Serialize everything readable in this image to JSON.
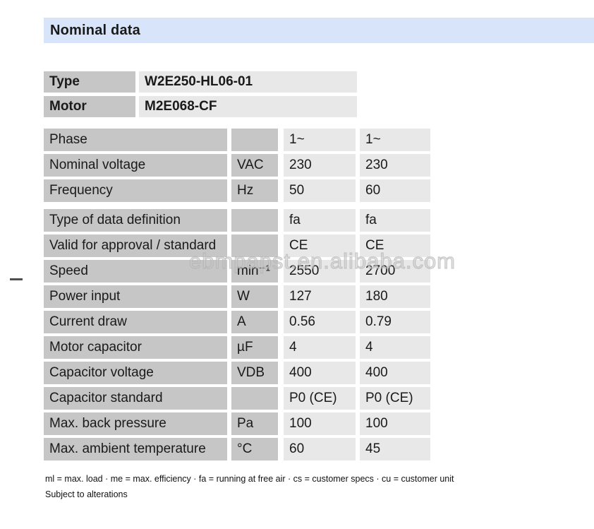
{
  "page": {
    "title": "Nominal data",
    "watermark": "ebmpapst.en.alibaba.com",
    "footer_line1": "ml = max. load · me = max. efficiency · fa = running at free air · cs = customer specs · cu = customer unit",
    "footer_line2": "Subject to alterations"
  },
  "info_table": {
    "rows": [
      {
        "label": "Type",
        "value": "W2E250-HL06-01"
      },
      {
        "label": "Motor",
        "value": "M2E068-CF"
      }
    ]
  },
  "spec_table": {
    "columns": [
      "parameter",
      "unit",
      "value_col_1",
      "value_col_2"
    ],
    "groups": [
      [
        {
          "label": "Phase",
          "unit": "",
          "v1": "1~",
          "v2": "1~"
        },
        {
          "label": "Nominal voltage",
          "unit": "VAC",
          "v1": "230",
          "v2": "230"
        },
        {
          "label": "Frequency",
          "unit": "Hz",
          "v1": "50",
          "v2": "60"
        }
      ],
      [
        {
          "label": "Type of data definition",
          "unit": "",
          "v1": "fa",
          "v2": "fa"
        },
        {
          "label": "Valid for approval / standard",
          "unit": "",
          "v1": "CE",
          "v2": "CE"
        },
        {
          "label": "Speed",
          "unit": "min⁻¹",
          "v1": "2550",
          "v2": "2700"
        },
        {
          "label": "Power input",
          "unit": "W",
          "v1": "127",
          "v2": "180"
        },
        {
          "label": "Current draw",
          "unit": "A",
          "v1": "0.56",
          "v2": "0.79"
        },
        {
          "label": "Motor capacitor",
          "unit": "µF",
          "v1": "4",
          "v2": "4"
        },
        {
          "label": "Capacitor voltage",
          "unit": "VDB",
          "v1": "400",
          "v2": "400"
        },
        {
          "label": "Capacitor standard",
          "unit": "",
          "v1": "P0 (CE)",
          "v2": "P0 (CE)"
        },
        {
          "label": "Max. back pressure",
          "unit": "Pa",
          "v1": "100",
          "v2": "100"
        },
        {
          "label": "Max. ambient temperature",
          "unit": "°C",
          "v1": "60",
          "v2": "45"
        }
      ]
    ]
  },
  "colors": {
    "title_band": "#d8e4fa",
    "cell_dark": "#c5c6c5",
    "cell_light": "#e8e8e8",
    "text": "#1a1a1a",
    "watermark": "#c9c9c9"
  }
}
